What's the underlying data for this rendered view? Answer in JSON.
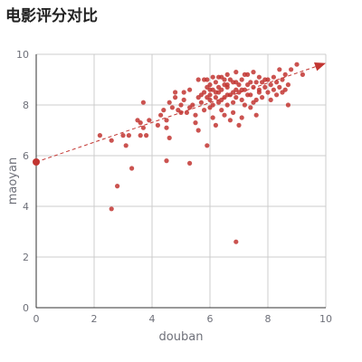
{
  "chart_data": {
    "type": "scatter",
    "title": "电影评分对比",
    "xlabel": "douban",
    "ylabel": "maoyan",
    "xlim": [
      0,
      10
    ],
    "ylim": [
      0,
      10
    ],
    "xticks": [
      0,
      2,
      4,
      6,
      8,
      10
    ],
    "yticks": [
      0,
      2,
      4,
      6,
      8,
      10
    ],
    "grid": true,
    "point_color": "#c23531",
    "axis_color": "#333333",
    "grid_color": "#cccccc",
    "trendline": {
      "from": [
        0,
        5.75
      ],
      "to": [
        10,
        9.65
      ],
      "style": "dashed-arrow"
    },
    "series": [
      {
        "values": [
          [
            2.2,
            6.8
          ],
          [
            2.6,
            6.6
          ],
          [
            3.0,
            6.8
          ],
          [
            3.1,
            6.4
          ],
          [
            3.2,
            6.8
          ],
          [
            3.5,
            7.4
          ],
          [
            3.6,
            7.3
          ],
          [
            3.7,
            7.1
          ],
          [
            3.7,
            8.1
          ],
          [
            3.9,
            7.4
          ],
          [
            3.6,
            6.8
          ],
          [
            3.8,
            6.8
          ],
          [
            3.3,
            5.5
          ],
          [
            2.8,
            4.8
          ],
          [
            2.6,
            3.9
          ],
          [
            4.5,
            5.8
          ],
          [
            5.3,
            5.7
          ],
          [
            6.9,
            2.6
          ],
          [
            5.9,
            6.4
          ],
          [
            4.2,
            7.2
          ],
          [
            4.3,
            7.6
          ],
          [
            4.4,
            7.8
          ],
          [
            4.5,
            7.1
          ],
          [
            4.5,
            7.4
          ],
          [
            4.6,
            6.7
          ],
          [
            4.6,
            8.1
          ],
          [
            4.7,
            7.9
          ],
          [
            4.8,
            8.3
          ],
          [
            4.8,
            8.5
          ],
          [
            4.9,
            7.8
          ],
          [
            5.0,
            8.0
          ],
          [
            5.0,
            7.7
          ],
          [
            5.1,
            8.2
          ],
          [
            5.1,
            8.5
          ],
          [
            5.2,
            7.7
          ],
          [
            5.3,
            8.6
          ],
          [
            5.3,
            7.9
          ],
          [
            5.4,
            8.0
          ],
          [
            5.5,
            7.6
          ],
          [
            5.5,
            7.3
          ],
          [
            5.6,
            9.0
          ],
          [
            5.6,
            8.3
          ],
          [
            5.6,
            7.0
          ],
          [
            5.7,
            8.1
          ],
          [
            5.8,
            8.5
          ],
          [
            5.8,
            7.8
          ],
          [
            5.9,
            8.3
          ],
          [
            5.9,
            9.0
          ],
          [
            6.0,
            7.9
          ],
          [
            6.0,
            8.4
          ],
          [
            6.0,
            8.8
          ],
          [
            6.1,
            8.6
          ],
          [
            6.1,
            8.0
          ],
          [
            6.1,
            7.5
          ],
          [
            6.2,
            8.3
          ],
          [
            6.2,
            8.9
          ],
          [
            6.2,
            7.2
          ],
          [
            6.3,
            8.5
          ],
          [
            6.3,
            8.1
          ],
          [
            6.3,
            9.1
          ],
          [
            6.4,
            7.8
          ],
          [
            6.4,
            8.6
          ],
          [
            6.5,
            8.8
          ],
          [
            6.5,
            8.3
          ],
          [
            6.5,
            7.6
          ],
          [
            6.6,
            8.0
          ],
          [
            6.6,
            8.7
          ],
          [
            6.6,
            9.2
          ],
          [
            6.7,
            8.4
          ],
          [
            6.7,
            7.4
          ],
          [
            6.8,
            8.9
          ],
          [
            6.8,
            8.1
          ],
          [
            6.8,
            7.7
          ],
          [
            6.9,
            8.6
          ],
          [
            6.9,
            9.3
          ],
          [
            6.9,
            8.3
          ],
          [
            7.0,
            7.2
          ],
          [
            7.0,
            8.8
          ],
          [
            7.1,
            8.2
          ],
          [
            7.1,
            9.0
          ],
          [
            7.1,
            7.5
          ],
          [
            7.2,
            8.6
          ],
          [
            7.2,
            8.0
          ],
          [
            7.3,
            9.2
          ],
          [
            7.3,
            8.4
          ],
          [
            7.4,
            8.9
          ],
          [
            7.4,
            7.9
          ],
          [
            7.5,
            8.7
          ],
          [
            7.5,
            9.3
          ],
          [
            7.6,
            8.2
          ],
          [
            7.6,
            7.6
          ],
          [
            7.7,
            8.6
          ],
          [
            7.7,
            9.1
          ],
          [
            7.8,
            8.9
          ],
          [
            7.8,
            8.3
          ],
          [
            7.9,
            9.0
          ],
          [
            7.9,
            8.7
          ],
          [
            8.0,
            8.5
          ],
          [
            8.0,
            9.0
          ],
          [
            8.1,
            8.2
          ],
          [
            8.1,
            8.8
          ],
          [
            8.2,
            8.6
          ],
          [
            8.2,
            9.1
          ],
          [
            8.3,
            8.4
          ],
          [
            8.3,
            8.9
          ],
          [
            8.4,
            8.7
          ],
          [
            8.4,
            9.4
          ],
          [
            8.5,
            8.5
          ],
          [
            8.5,
            9.0
          ],
          [
            8.6,
            9.2
          ],
          [
            8.6,
            8.6
          ],
          [
            8.7,
            8.8
          ],
          [
            8.7,
            8.0
          ],
          [
            8.8,
            9.4
          ],
          [
            9.0,
            9.6
          ],
          [
            9.2,
            9.2
          ],
          [
            5.7,
            8.4
          ],
          [
            5.8,
            9.0
          ],
          [
            6.0,
            8.6
          ],
          [
            6.1,
            9.1
          ],
          [
            6.3,
            8.7
          ],
          [
            6.4,
            9.1
          ],
          [
            6.6,
            8.4
          ],
          [
            6.7,
            9.0
          ],
          [
            6.9,
            8.9
          ],
          [
            7.0,
            8.5
          ],
          [
            7.2,
            9.2
          ],
          [
            7.4,
            8.4
          ],
          [
            7.5,
            8.1
          ],
          [
            7.7,
            8.5
          ],
          [
            6.0,
            8.2
          ],
          [
            6.2,
            8.5
          ],
          [
            6.5,
            9.0
          ],
          [
            6.8,
            8.5
          ],
          [
            7.1,
            8.6
          ],
          [
            7.3,
            8.8
          ],
          [
            7.6,
            8.9
          ],
          [
            6.4,
            8.2
          ],
          [
            5.9,
            8.7
          ],
          [
            6.6,
            8.8
          ]
        ]
      }
    ]
  }
}
